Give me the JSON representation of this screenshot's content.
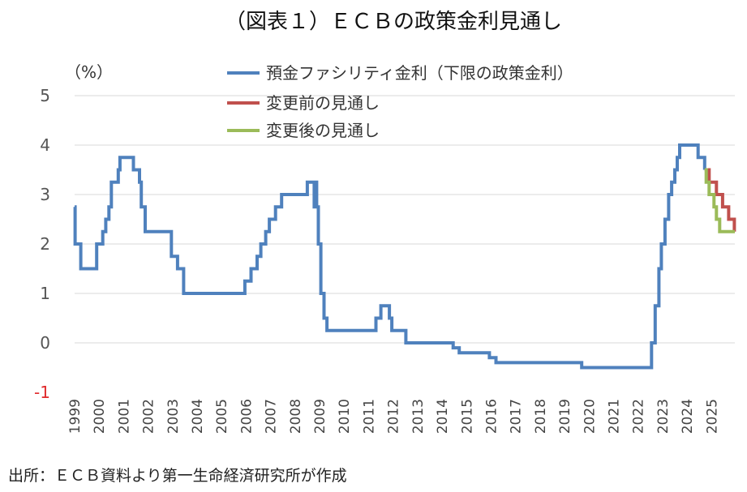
{
  "chart_data": {
    "type": "line",
    "title": "（図表１）ＥＣＢの政策金利見通し",
    "ylabel": "（%）",
    "ylim": [
      -1,
      5
    ],
    "yticks": [
      "5",
      "4",
      "3",
      "2",
      "1",
      "0",
      "-1"
    ],
    "xlim": [
      1999.0,
      2025.95
    ],
    "xticks": [
      "1999",
      "2000",
      "2001",
      "2002",
      "2003",
      "2004",
      "2005",
      "2006",
      "2007",
      "2008",
      "2009",
      "2010",
      "2011",
      "2012",
      "2013",
      "2014",
      "2015",
      "2016",
      "2017",
      "2018",
      "2019",
      "2020",
      "2021",
      "2022",
      "2023",
      "2024",
      "2025"
    ],
    "grid": true,
    "legend_position": "top",
    "step": true,
    "series": [
      {
        "name": "預金ファシリティ金利（下限の政策金利）",
        "color": "#4f81bd",
        "points": [
          [
            1999.0,
            2.75
          ],
          [
            1999.02,
            2.0
          ],
          [
            1999.25,
            1.5
          ],
          [
            1999.9,
            2.0
          ],
          [
            2000.15,
            2.25
          ],
          [
            2000.27,
            2.5
          ],
          [
            2000.4,
            2.75
          ],
          [
            2000.5,
            3.25
          ],
          [
            2000.78,
            3.5
          ],
          [
            2000.85,
            3.75
          ],
          [
            2001.4,
            3.5
          ],
          [
            2001.65,
            3.25
          ],
          [
            2001.72,
            2.75
          ],
          [
            2001.88,
            2.25
          ],
          [
            2002.95,
            1.75
          ],
          [
            2003.2,
            1.5
          ],
          [
            2003.45,
            1.0
          ],
          [
            2005.95,
            1.25
          ],
          [
            2006.2,
            1.5
          ],
          [
            2006.45,
            1.75
          ],
          [
            2006.6,
            2.0
          ],
          [
            2006.8,
            2.25
          ],
          [
            2006.95,
            2.5
          ],
          [
            2007.2,
            2.75
          ],
          [
            2007.45,
            3.0
          ],
          [
            2008.5,
            3.25
          ],
          [
            2008.78,
            2.75
          ],
          [
            2008.85,
            3.25
          ],
          [
            2008.88,
            2.75
          ],
          [
            2008.95,
            2.0
          ],
          [
            2009.05,
            1.0
          ],
          [
            2009.18,
            0.5
          ],
          [
            2009.3,
            0.25
          ],
          [
            2011.3,
            0.5
          ],
          [
            2011.5,
            0.75
          ],
          [
            2011.85,
            0.5
          ],
          [
            2011.95,
            0.25
          ],
          [
            2012.52,
            0.0
          ],
          [
            2014.45,
            -0.1
          ],
          [
            2014.7,
            -0.2
          ],
          [
            2015.93,
            -0.3
          ],
          [
            2016.2,
            -0.4
          ],
          [
            2019.7,
            -0.5
          ],
          [
            2022.55,
            0.0
          ],
          [
            2022.7,
            0.75
          ],
          [
            2022.85,
            1.5
          ],
          [
            2022.95,
            2.0
          ],
          [
            2023.1,
            2.5
          ],
          [
            2023.25,
            3.0
          ],
          [
            2023.37,
            3.25
          ],
          [
            2023.5,
            3.5
          ],
          [
            2023.6,
            3.75
          ],
          [
            2023.7,
            4.0
          ],
          [
            2024.45,
            3.75
          ],
          [
            2024.72,
            3.5
          ]
        ]
      },
      {
        "name": "変更前の見通し",
        "color": "#c0504d",
        "points": [
          [
            2024.72,
            3.5
          ],
          [
            2024.9,
            3.25
          ],
          [
            2025.2,
            3.0
          ],
          [
            2025.45,
            2.75
          ],
          [
            2025.7,
            2.5
          ],
          [
            2025.93,
            2.25
          ]
        ]
      },
      {
        "name": "変更後の見通し",
        "color": "#9bbb59",
        "points": [
          [
            2024.72,
            3.5
          ],
          [
            2024.78,
            3.25
          ],
          [
            2024.9,
            3.0
          ],
          [
            2025.1,
            2.75
          ],
          [
            2025.2,
            2.5
          ],
          [
            2025.33,
            2.25
          ],
          [
            2025.95,
            2.25
          ]
        ]
      }
    ]
  },
  "source": "出所：ＥＣＢ資料より第一生命経済研究所が作成"
}
